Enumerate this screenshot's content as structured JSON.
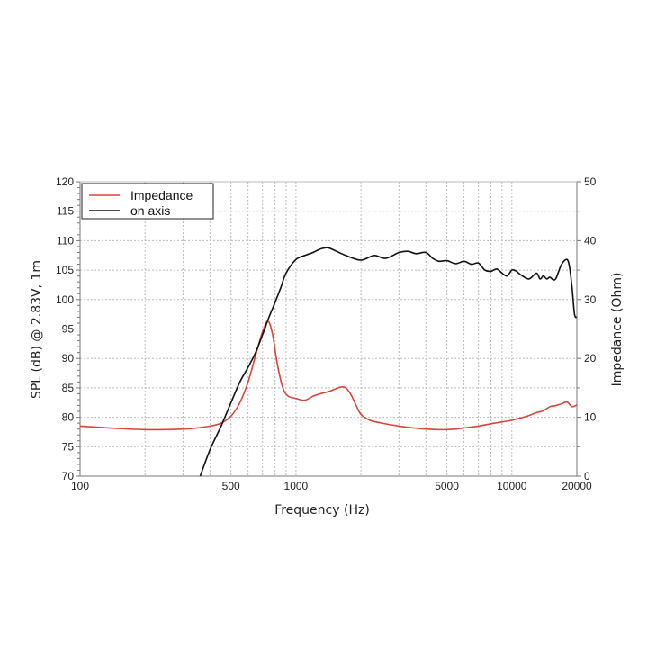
{
  "chart_data": {
    "type": "line",
    "title": "",
    "xlabel": "Frequency (Hz)",
    "ylabel": "SPL (dB) @ 2.83V, 1m",
    "y2label": "Impedance (Ohm)",
    "xscale": "log",
    "xlim": [
      100,
      20000
    ],
    "ylim": [
      70,
      120
    ],
    "y2lim": [
      0,
      50
    ],
    "x_tick_labels": [
      "100",
      "500",
      "1000",
      "5000",
      "10000",
      "20000"
    ],
    "x_ticks": [
      100,
      500,
      1000,
      5000,
      10000,
      20000
    ],
    "y_ticks": [
      70,
      75,
      80,
      85,
      90,
      95,
      100,
      105,
      110,
      115,
      120
    ],
    "y2_ticks": [
      0,
      10,
      20,
      30,
      40,
      50
    ],
    "grid": true,
    "legend_position": "upper left",
    "series": [
      {
        "name": "Impedance",
        "axis": "right",
        "color": "#d9453a",
        "x": [
          100,
          150,
          200,
          250,
          300,
          350,
          400,
          450,
          500,
          550,
          600,
          650,
          700,
          743,
          780,
          820,
          870,
          920,
          1000,
          1100,
          1200,
          1300,
          1450,
          1600,
          1700,
          1800,
          1900,
          2000,
          2200,
          2500,
          3000,
          3500,
          4000,
          4500,
          5000,
          5500,
          6000,
          7000,
          8000,
          9000,
          10000,
          11000,
          12000,
          13000,
          14000,
          15000,
          16000,
          17000,
          18000,
          19000,
          20000
        ],
        "values": [
          8.5,
          8.1,
          7.9,
          7.9,
          8.0,
          8.2,
          8.5,
          9.0,
          10.2,
          12.5,
          16.0,
          20.5,
          24.5,
          26.3,
          24.0,
          19.0,
          15.0,
          13.6,
          13.2,
          12.9,
          13.6,
          14.0,
          14.5,
          15.1,
          15.0,
          13.8,
          12.0,
          10.5,
          9.5,
          9.0,
          8.5,
          8.2,
          8.0,
          7.9,
          7.9,
          8.0,
          8.2,
          8.5,
          8.9,
          9.2,
          9.5,
          9.9,
          10.3,
          10.8,
          11.1,
          11.8,
          12.0,
          12.3,
          12.6,
          11.8,
          12.1
        ]
      },
      {
        "name": "on axis",
        "axis": "left",
        "color": "#111111",
        "x": [
          360,
          400,
          450,
          500,
          550,
          600,
          650,
          700,
          750,
          800,
          850,
          900,
          1000,
          1100,
          1200,
          1300,
          1400,
          1500,
          1700,
          2000,
          2300,
          2600,
          3000,
          3300,
          3600,
          4000,
          4300,
          4600,
          5000,
          5500,
          6000,
          6500,
          7000,
          7500,
          8000,
          8500,
          9000,
          9500,
          10000,
          10500,
          11000,
          12000,
          13000,
          13500,
          14000,
          14500,
          15000,
          15500,
          16000,
          17000,
          18000,
          18500,
          19000,
          19500,
          20000
        ],
        "values": [
          70.0,
          74.5,
          78.5,
          82.5,
          86.0,
          88.5,
          91.0,
          94.0,
          97.0,
          99.5,
          102.0,
          104.5,
          106.8,
          107.5,
          108.0,
          108.6,
          108.8,
          108.4,
          107.5,
          106.7,
          107.5,
          107.0,
          108.0,
          108.2,
          107.8,
          108.0,
          107.0,
          106.5,
          106.6,
          106.1,
          106.5,
          106.0,
          106.2,
          105.0,
          104.8,
          105.2,
          104.5,
          104.0,
          105.0,
          104.8,
          104.2,
          103.5,
          104.5,
          103.5,
          104.0,
          103.5,
          103.8,
          103.4,
          103.6,
          106.0,
          106.8,
          105.5,
          102.0,
          97.5,
          97.0
        ]
      }
    ]
  },
  "legend": {
    "items": [
      {
        "label": "Impedance",
        "color": "#d9453a"
      },
      {
        "label": "on axis",
        "color": "#111111"
      }
    ]
  },
  "axes": {
    "x_title": "Frequency (Hz)",
    "y_left_title": "SPL (dB) @ 2.83V, 1m",
    "y_right_title": "Impedance (Ohm)"
  }
}
